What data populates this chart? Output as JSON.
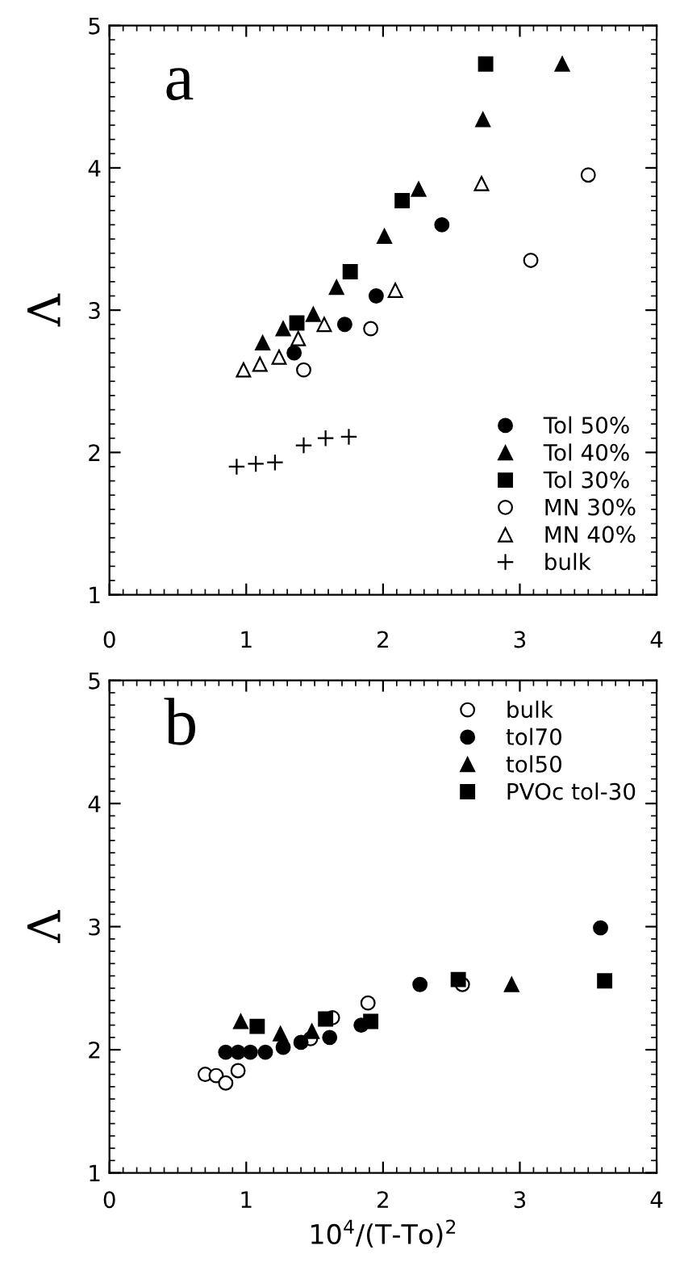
{
  "chart_data": [
    {
      "type": "scatter",
      "ylabel": "Λ",
      "annotations": [
        "a"
      ],
      "legend": "bottom right",
      "xlim": [
        0,
        4
      ],
      "ylim": [
        1,
        5
      ],
      "xticks": [
        0,
        1,
        2,
        3,
        4
      ],
      "yticks": [
        1,
        2,
        3,
        4,
        5
      ],
      "grid": false,
      "series": [
        {
          "name": "Tol 50%",
          "color": "#000000",
          "marker": "circle",
          "x": [
            1.35,
            1.72,
            1.95,
            2.43
          ],
          "values": [
            2.7,
            2.9,
            3.1,
            3.6
          ]
        },
        {
          "name": "Tol 40%",
          "color": "#000000",
          "marker": "triangle",
          "x": [
            1.12,
            1.27,
            1.49,
            1.66,
            2.01,
            2.26,
            2.73,
            3.31
          ],
          "values": [
            2.77,
            2.87,
            2.97,
            3.16,
            3.52,
            3.85,
            4.34,
            4.73
          ]
        },
        {
          "name": "Tol 30%",
          "color": "#000000",
          "marker": "square",
          "x": [
            1.37,
            1.76,
            2.14,
            2.75
          ],
          "values": [
            2.91,
            3.27,
            3.77,
            4.73
          ]
        },
        {
          "name": "MN 30%",
          "color": "#ffffff",
          "marker": "circle",
          "x": [
            1.42,
            1.91,
            3.08,
            3.5
          ],
          "values": [
            2.58,
            2.87,
            3.35,
            3.95
          ]
        },
        {
          "name": "MN 40%",
          "color": "#ffffff",
          "marker": "triangle",
          "x": [
            0.98,
            1.1,
            1.24,
            1.38,
            1.57,
            2.09,
            2.72
          ],
          "values": [
            2.58,
            2.62,
            2.67,
            2.8,
            2.9,
            3.14,
            3.89
          ]
        },
        {
          "name": "bulk",
          "color": "#000000",
          "marker": "cross",
          "x": [
            0.93,
            1.07,
            1.21,
            1.42,
            1.58,
            1.75
          ],
          "values": [
            1.9,
            1.92,
            1.93,
            2.05,
            2.1,
            2.11
          ]
        }
      ]
    },
    {
      "type": "scatter",
      "xlabel": "10$^{4}$/(T-To)$^{2}$",
      "ylabel": "Λ",
      "annotations": [
        "b"
      ],
      "legend": "top right",
      "xlim": [
        0,
        4
      ],
      "ylim": [
        1,
        5
      ],
      "xticks": [
        0,
        1,
        2,
        3,
        4
      ],
      "yticks": [
        1,
        2,
        3,
        4,
        5
      ],
      "grid": false,
      "series": [
        {
          "name": "bulk",
          "color": "#ffffff",
          "marker": "circle",
          "x": [
            0.7,
            0.78,
            0.85,
            0.94,
            1.47,
            1.63,
            1.89,
            2.58
          ],
          "values": [
            1.8,
            1.79,
            1.73,
            1.83,
            2.09,
            2.26,
            2.38,
            2.53
          ]
        },
        {
          "name": "tol70",
          "color": "#000000",
          "marker": "circle",
          "x": [
            0.85,
            0.94,
            1.03,
            1.14,
            1.27,
            1.4,
            1.61,
            1.84,
            2.27,
            3.59
          ],
          "values": [
            1.98,
            1.98,
            1.98,
            1.98,
            2.02,
            2.06,
            2.1,
            2.2,
            2.53,
            2.99
          ]
        },
        {
          "name": "tol50",
          "color": "#000000",
          "marker": "triangle",
          "x": [
            0.96,
            1.25,
            1.48,
            2.94
          ],
          "values": [
            2.23,
            2.13,
            2.15,
            2.53
          ]
        },
        {
          "name": "PVOc tol-30",
          "color": "#000000",
          "marker": "square",
          "x": [
            1.08,
            1.58,
            1.91,
            2.55,
            3.62
          ],
          "values": [
            2.19,
            2.25,
            2.23,
            2.57,
            2.56
          ]
        }
      ]
    }
  ]
}
